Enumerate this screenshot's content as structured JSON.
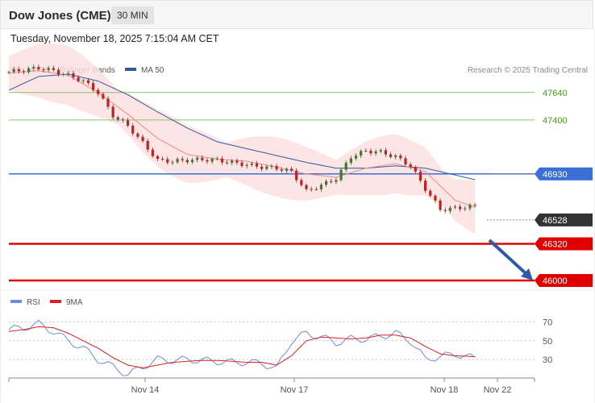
{
  "header": {
    "title": "Dow Jones (CME)",
    "timeframe": "30 MIN"
  },
  "datetime": "Tuesday, November 18, 2025 7:15:04 AM CET",
  "legend": {
    "ma20": "MA 20 + Bollinger Bands",
    "ma50": "MA 50",
    "credit": "Research © 2025 Trading Central",
    "rsi": "RSI",
    "rsi_ma": "9MA"
  },
  "colors": {
    "ma20": "#f08a8a",
    "bands": "#fde0e0",
    "ma50": "#2f5aa0",
    "resistance": "#86c56a",
    "resistance_text": "#4a9a1a",
    "pivot": "#3a6fd8",
    "support": "#e00000",
    "last": "#333333",
    "candle_up": "#3a7d2a",
    "candle_down": "#c02020",
    "rsi": "#6a8ee0",
    "rsi_ma": "#e02020",
    "arrow": "#2e5aa8"
  },
  "levels": [
    {
      "value": 47640,
      "label": "47640",
      "kind": "resistance"
    },
    {
      "value": 47400,
      "label": "47400",
      "kind": "resistance"
    },
    {
      "value": 46930,
      "label": "46930",
      "kind": "pivot"
    },
    {
      "value": 46528,
      "label": "46528",
      "kind": "last"
    },
    {
      "value": 46320,
      "label": "46320",
      "kind": "support"
    },
    {
      "value": 46000,
      "label": "46000",
      "kind": "support"
    }
  ],
  "chart_data": [
    {
      "type": "line",
      "title": "Dow Jones (CME)",
      "subtitle": "30 MIN",
      "x_labels": [
        "Nov 14",
        "Nov 17",
        "Nov 18",
        "Nov 22"
      ],
      "ylim": [
        46000,
        47870
      ],
      "price": {
        "x": [
          0,
          3,
          6,
          9,
          12,
          15,
          18,
          21,
          24,
          27,
          30,
          33,
          36,
          39,
          42,
          45,
          48,
          51,
          54,
          57,
          60,
          63,
          66,
          69,
          72,
          75,
          78,
          81,
          84,
          87,
          90,
          94
        ],
        "close": [
          47820,
          47835,
          47855,
          47830,
          47790,
          47740,
          47640,
          47440,
          47350,
          47200,
          47050,
          47040,
          47050,
          47055,
          47050,
          47030,
          47010,
          46990,
          46980,
          46950,
          46780,
          46830,
          46890,
          47080,
          47130,
          47120,
          47080,
          47000,
          46800,
          46620,
          46630,
          46650
        ]
      },
      "series": [
        {
          "name": "MA 20 + Bollinger Bands",
          "x": [
            0,
            6,
            12,
            18,
            24,
            30,
            36,
            42,
            48,
            54,
            60,
            66,
            72,
            78,
            84,
            90,
            94
          ],
          "values": [
            47810,
            47830,
            47790,
            47640,
            47450,
            47240,
            47100,
            47060,
            47040,
            46990,
            46930,
            46900,
            46980,
            47020,
            46950,
            46700,
            46640
          ]
        },
        {
          "name": "MA 50",
          "x": [
            0,
            6,
            12,
            18,
            24,
            30,
            36,
            42,
            48,
            54,
            60,
            66,
            72,
            78,
            84,
            90,
            94
          ],
          "values": [
            47660,
            47780,
            47800,
            47740,
            47620,
            47470,
            47330,
            47210,
            47150,
            47090,
            47030,
            46980,
            46980,
            47000,
            46980,
            46920,
            46880
          ]
        }
      ]
    },
    {
      "type": "line",
      "x_labels": [
        "Nov 14",
        "Nov 17",
        "Nov 18",
        "Nov 22"
      ],
      "ylim": [
        10,
        80
      ],
      "y_ticks": [
        70,
        50,
        30
      ],
      "series": [
        {
          "name": "RSI",
          "x": [
            0,
            3,
            6,
            9,
            12,
            15,
            18,
            21,
            24,
            27,
            30,
            33,
            36,
            39,
            42,
            45,
            48,
            51,
            54,
            57,
            60,
            63,
            66,
            69,
            72,
            75,
            78,
            81,
            84,
            87,
            90,
            94
          ],
          "values": [
            62,
            64,
            68,
            60,
            50,
            42,
            30,
            22,
            14,
            22,
            30,
            29,
            30,
            29,
            28,
            27,
            27,
            26,
            20,
            50,
            58,
            54,
            48,
            52,
            52,
            55,
            58,
            50,
            30,
            33,
            36,
            31
          ]
        },
        {
          "name": "9MA",
          "x": [
            0,
            3,
            6,
            9,
            12,
            15,
            18,
            21,
            24,
            27,
            30,
            33,
            36,
            39,
            42,
            45,
            48,
            51,
            54,
            57,
            60,
            63,
            66,
            69,
            72,
            75,
            78,
            81,
            84,
            87,
            90,
            94
          ],
          "values": [
            60,
            62,
            65,
            64,
            58,
            50,
            42,
            32,
            24,
            21,
            24,
            27,
            28,
            29,
            29,
            28,
            27,
            27,
            24,
            34,
            50,
            54,
            53,
            52,
            53,
            56,
            56,
            53,
            44,
            36,
            34,
            33
          ]
        }
      ]
    }
  ]
}
